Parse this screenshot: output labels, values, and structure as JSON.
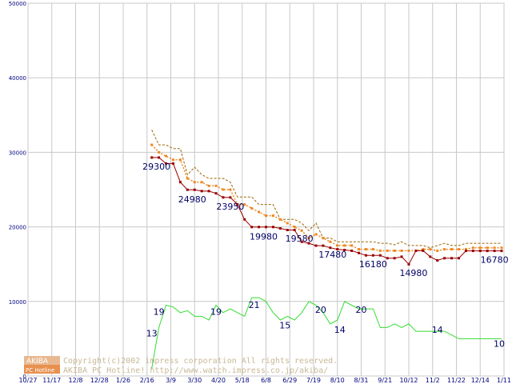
{
  "chart_data": {
    "type": "line",
    "ylim": [
      0,
      50000
    ],
    "yticks": [
      "0",
      "10000",
      "20000",
      "30000",
      "40000",
      "50000"
    ],
    "x_ticks": [
      "10/27",
      "11/17",
      "12/8",
      "12/28",
      "1/26",
      "2/16",
      "3/9",
      "3/30",
      "4/20",
      "5/18",
      "6/8",
      "6/29",
      "7/19",
      "8/10",
      "8/31",
      "9/21",
      "10/12",
      "11/2",
      "11/22",
      "12/14",
      "1/11"
    ],
    "grid": true,
    "series": [
      {
        "name": "",
        "color": "#996600",
        "style": "dashed",
        "x": [
          5.2,
          5.5,
          5.8,
          6.1,
          6.4,
          6.7,
          7.0,
          7.3,
          7.6,
          7.9,
          8.2,
          8.5,
          8.8,
          9.1,
          9.4,
          9.7,
          10.0,
          10.3,
          10.6,
          10.9,
          11.2,
          11.5,
          11.8,
          12.1,
          12.4,
          12.7,
          13.0,
          13.3,
          13.6,
          13.9,
          14.2,
          14.5,
          14.8,
          15.1,
          15.4,
          15.7,
          16.0,
          16.3,
          16.6,
          16.9,
          17.2,
          17.5,
          17.8,
          18.1,
          18.4,
          18.7,
          19.0,
          19.3,
          19.6,
          19.9
        ],
        "values": [
          33000,
          31000,
          31000,
          30500,
          30500,
          27000,
          28000,
          27000,
          26500,
          26500,
          26500,
          26000,
          24000,
          24000,
          24000,
          23000,
          23000,
          23000,
          21000,
          21000,
          21000,
          20500,
          19500,
          20500,
          18500,
          18500,
          18000,
          18000,
          18000,
          18000,
          18000,
          18000,
          17800,
          17800,
          17600,
          18000,
          17500,
          17500,
          17500,
          17200,
          17500,
          17800,
          17500,
          17500,
          17800,
          17800,
          17800,
          17800,
          17800,
          17800
        ]
      },
      {
        "name": "",
        "color": "#ee8822",
        "style": "dotted-markers",
        "x": [
          5.2,
          5.5,
          5.8,
          6.1,
          6.4,
          6.7,
          7.0,
          7.3,
          7.6,
          7.9,
          8.2,
          8.5,
          8.8,
          9.1,
          9.4,
          9.7,
          10.0,
          10.3,
          10.6,
          10.9,
          11.2,
          11.5,
          11.8,
          12.1,
          12.4,
          12.7,
          13.0,
          13.3,
          13.6,
          13.9,
          14.2,
          14.5,
          14.8,
          15.1,
          15.4,
          15.7,
          16.0,
          16.3,
          16.6,
          16.9,
          17.2,
          17.5,
          17.8,
          18.1,
          18.4,
          18.7,
          19.0,
          19.3,
          19.6,
          19.9
        ],
        "values": [
          31000,
          30000,
          29500,
          29000,
          29000,
          26500,
          26000,
          26000,
          25500,
          25500,
          25000,
          25000,
          23000,
          23000,
          22500,
          22000,
          21500,
          21500,
          21000,
          20500,
          20000,
          19500,
          18500,
          19000,
          18500,
          18000,
          17500,
          17500,
          17500,
          17000,
          17000,
          17000,
          16800,
          16800,
          16800,
          16800,
          16800,
          16800,
          17000,
          17000,
          16800,
          17000,
          17000,
          17000,
          17000,
          17200,
          17200,
          17200,
          17200,
          17200
        ]
      },
      {
        "name": "",
        "color": "#990000",
        "style": "solid-markers",
        "x": [
          5.2,
          5.5,
          5.8,
          6.1,
          6.4,
          6.7,
          7.0,
          7.3,
          7.6,
          7.9,
          8.2,
          8.5,
          8.8,
          9.1,
          9.4,
          9.7,
          10.0,
          10.3,
          10.6,
          10.9,
          11.2,
          11.5,
          11.8,
          12.1,
          12.4,
          12.7,
          13.0,
          13.3,
          13.6,
          13.9,
          14.2,
          14.5,
          14.8,
          15.1,
          15.4,
          15.7,
          16.0,
          16.3,
          16.6,
          16.9,
          17.2,
          17.5,
          17.8,
          18.1,
          18.4,
          18.7,
          19.0,
          19.3,
          19.6,
          19.9
        ],
        "values": [
          29300,
          29300,
          28500,
          28500,
          26000,
          24980,
          24980,
          24800,
          24800,
          24500,
          23950,
          23950,
          23000,
          21000,
          19980,
          19980,
          19980,
          19980,
          19800,
          19580,
          19580,
          18000,
          17800,
          17480,
          17480,
          17200,
          17000,
          16900,
          16800,
          16500,
          16180,
          16180,
          16180,
          15800,
          15800,
          16000,
          14980,
          16800,
          16800,
          16000,
          15500,
          15800,
          15800,
          15800,
          16780,
          16780,
          16780,
          16780,
          16780,
          16780
        ]
      },
      {
        "name": "",
        "color": "#33dd33",
        "style": "solid",
        "axis": "count",
        "x": [
          5.2,
          5.5,
          5.8,
          6.1,
          6.4,
          6.7,
          7.0,
          7.3,
          7.6,
          7.9,
          8.2,
          8.5,
          8.8,
          9.1,
          9.4,
          9.7,
          10.0,
          10.3,
          10.6,
          10.9,
          11.2,
          11.5,
          11.8,
          12.1,
          12.4,
          12.7,
          13.0,
          13.3,
          13.6,
          13.9,
          14.2,
          14.5,
          14.8,
          15.1,
          15.4,
          15.7,
          16.0,
          16.3,
          16.6,
          16.9,
          17.2,
          17.5,
          17.8,
          18.1,
          18.4,
          18.7,
          19.0,
          19.3,
          19.6,
          19.9
        ],
        "values": [
          2,
          13,
          19,
          18.5,
          17,
          17.5,
          16,
          16,
          15,
          19,
          17,
          18,
          17,
          16,
          21,
          21,
          20,
          17,
          15,
          16,
          15,
          17,
          20,
          19,
          17,
          14,
          15,
          20,
          19,
          18,
          18,
          18,
          13,
          13,
          14,
          13,
          14,
          12,
          12,
          12,
          12,
          12,
          11,
          10,
          10,
          10,
          10,
          10,
          10,
          10
        ]
      }
    ],
    "data_labels": [
      {
        "text": "29300",
        "x": 5.4,
        "y": 27700
      },
      {
        "text": "24980",
        "x": 6.9,
        "y": 23300
      },
      {
        "text": "23950",
        "x": 8.5,
        "y": 22300
      },
      {
        "text": "19980",
        "x": 9.9,
        "y": 18300
      },
      {
        "text": "19580",
        "x": 11.4,
        "y": 18000
      },
      {
        "text": "17480",
        "x": 12.8,
        "y": 15900
      },
      {
        "text": "16180",
        "x": 14.5,
        "y": 14600
      },
      {
        "text": "14980",
        "x": 16.2,
        "y": 13400
      },
      {
        "text": "16780",
        "x": 19.6,
        "y": 15200
      }
    ],
    "count_labels": [
      {
        "text": "13",
        "x": 5.2,
        "y": 5300
      },
      {
        "text": "19",
        "x": 5.5,
        "y": 8200
      },
      {
        "text": "19",
        "x": 7.9,
        "y": 8200
      },
      {
        "text": "21",
        "x": 9.5,
        "y": 9100
      },
      {
        "text": "15",
        "x": 10.8,
        "y": 6400
      },
      {
        "text": "20",
        "x": 12.3,
        "y": 8500
      },
      {
        "text": "14",
        "x": 13.1,
        "y": 5800
      },
      {
        "text": "20",
        "x": 14.0,
        "y": 8500
      },
      {
        "text": "14",
        "x": 17.2,
        "y": 5800
      },
      {
        "text": "10",
        "x": 19.8,
        "y": 3900
      }
    ]
  },
  "count_axis_scale": 500,
  "copyright": {
    "line1": "Copyright(c)2002 impress corporation All rights reserved.",
    "line2": "AKIBA PC Hotline! http://www.watch.impress.co.jp/akiba/",
    "logo_top": "AKIBA",
    "logo_bottom": "PC Hotline"
  }
}
